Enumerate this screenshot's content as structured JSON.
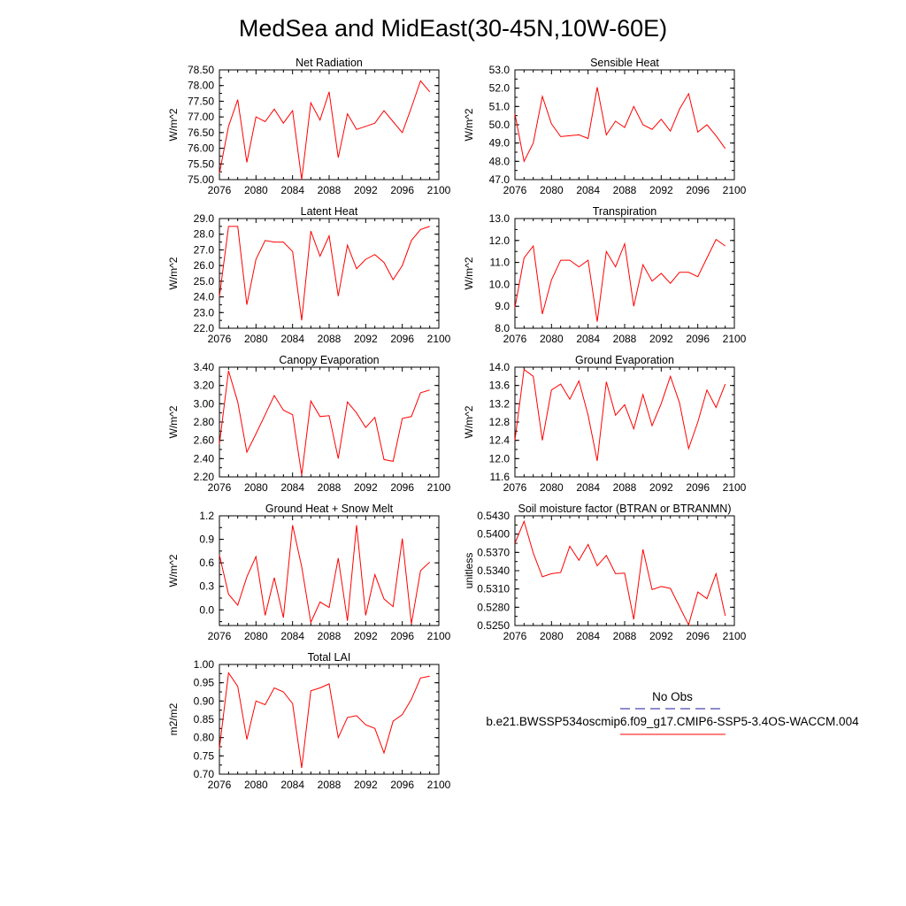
{
  "figure": {
    "title": "MedSea and MidEast(30-45N,10W-60E)"
  },
  "legend": {
    "entries": [
      {
        "label": "No Obs",
        "color": "#1a1a9c",
        "style": "dashed"
      },
      {
        "label": "b.e21.BWSSP534oscmip6.f09_g17.CMIP6-SSP5-3.4OS-WACCM.004",
        "color": "#ff0000",
        "style": "solid"
      }
    ]
  },
  "chart_data": [
    {
      "type": "line",
      "title": "Net Radiation",
      "ylabel": "W/m^2",
      "line_color": "#ff0000",
      "xlim": [
        2076,
        2100
      ],
      "ylim": [
        75.0,
        78.5
      ],
      "xticks": [
        "2076",
        "2080",
        "2084",
        "2088",
        "2092",
        "2096",
        "2100"
      ],
      "yticks": [
        "75.00",
        "75.50",
        "76.00",
        "76.50",
        "77.00",
        "77.50",
        "78.00",
        "78.50"
      ],
      "x": [
        2076,
        2077,
        2078,
        2079,
        2080,
        2081,
        2082,
        2083,
        2084,
        2085,
        2086,
        2087,
        2088,
        2089,
        2090,
        2091,
        2092,
        2093,
        2094,
        2095,
        2096,
        2097,
        2098,
        2099
      ],
      "values": [
        75.2,
        76.7,
        77.55,
        75.55,
        77.0,
        76.85,
        77.25,
        76.8,
        77.2,
        75.0,
        77.45,
        76.9,
        77.8,
        75.7,
        77.1,
        76.6,
        76.7,
        76.8,
        77.2,
        76.85,
        76.5,
        77.3,
        78.15,
        77.8
      ]
    },
    {
      "type": "line",
      "title": "Sensible Heat",
      "ylabel": "W/m^2",
      "line_color": "#ff0000",
      "xlim": [
        2076,
        2100
      ],
      "ylim": [
        47.0,
        53.0
      ],
      "xticks": [
        "2076",
        "2080",
        "2084",
        "2088",
        "2092",
        "2096",
        "2100"
      ],
      "yticks": [
        "47.0",
        "48.0",
        "49.0",
        "50.0",
        "51.0",
        "52.0",
        "53.0"
      ],
      "x": [
        2076,
        2077,
        2078,
        2079,
        2080,
        2081,
        2082,
        2083,
        2084,
        2085,
        2086,
        2087,
        2088,
        2089,
        2090,
        2091,
        2092,
        2093,
        2094,
        2095,
        2096,
        2097,
        2098,
        2099
      ],
      "values": [
        50.6,
        48.0,
        49.0,
        51.55,
        50.05,
        49.35,
        49.4,
        49.45,
        49.25,
        52.05,
        49.45,
        50.2,
        49.85,
        51.0,
        50.0,
        49.75,
        50.3,
        49.65,
        50.85,
        51.7,
        49.6,
        50.0,
        49.4,
        48.7
      ]
    },
    {
      "type": "line",
      "title": "Latent Heat",
      "ylabel": "W/m^2",
      "line_color": "#ff0000",
      "xlim": [
        2076,
        2100
      ],
      "ylim": [
        22.0,
        29.0
      ],
      "xticks": [
        "2076",
        "2080",
        "2084",
        "2088",
        "2092",
        "2096",
        "2100"
      ],
      "yticks": [
        "22.0",
        "23.0",
        "24.0",
        "25.0",
        "26.0",
        "27.0",
        "28.0",
        "29.0"
      ],
      "x": [
        2076,
        2077,
        2078,
        2079,
        2080,
        2081,
        2082,
        2083,
        2084,
        2085,
        2086,
        2087,
        2088,
        2089,
        2090,
        2091,
        2092,
        2093,
        2094,
        2095,
        2096,
        2097,
        2098,
        2099
      ],
      "values": [
        24.0,
        28.5,
        28.5,
        23.5,
        26.4,
        27.6,
        27.5,
        27.5,
        26.9,
        22.5,
        28.2,
        26.6,
        27.9,
        24.05,
        27.3,
        25.8,
        26.4,
        26.7,
        26.2,
        25.1,
        26.0,
        27.6,
        28.3,
        28.5
      ]
    },
    {
      "type": "line",
      "title": "Transpiration",
      "ylabel": "W/m^2",
      "line_color": "#ff0000",
      "xlim": [
        2076,
        2100
      ],
      "ylim": [
        8.0,
        13.0
      ],
      "xticks": [
        "2076",
        "2080",
        "2084",
        "2088",
        "2092",
        "2096",
        "2100"
      ],
      "yticks": [
        "8.0",
        "9.0",
        "10.0",
        "11.0",
        "12.0",
        "13.0"
      ],
      "x": [
        2076,
        2077,
        2078,
        2079,
        2080,
        2081,
        2082,
        2083,
        2084,
        2085,
        2086,
        2087,
        2088,
        2089,
        2090,
        2091,
        2092,
        2093,
        2094,
        2095,
        2096,
        2097,
        2098,
        2099
      ],
      "values": [
        8.95,
        11.2,
        11.75,
        8.65,
        10.2,
        11.1,
        11.1,
        10.8,
        11.1,
        8.3,
        11.5,
        10.8,
        11.85,
        9.0,
        10.9,
        10.15,
        10.5,
        10.05,
        10.55,
        10.55,
        10.35,
        11.2,
        12.05,
        11.75
      ]
    },
    {
      "type": "line",
      "title": "Canopy Evaporation",
      "ylabel": "W/m^2",
      "line_color": "#ff0000",
      "xlim": [
        2076,
        2100
      ],
      "ylim": [
        2.2,
        3.4
      ],
      "xticks": [
        "2076",
        "2080",
        "2084",
        "2088",
        "2092",
        "2096",
        "2100"
      ],
      "yticks": [
        "2.20",
        "2.40",
        "2.60",
        "2.80",
        "3.00",
        "3.20",
        "3.40"
      ],
      "x": [
        2076,
        2077,
        2078,
        2079,
        2080,
        2081,
        2082,
        2083,
        2084,
        2085,
        2086,
        2087,
        2088,
        2089,
        2090,
        2091,
        2092,
        2093,
        2094,
        2095,
        2096,
        2097,
        2098,
        2099
      ],
      "values": [
        2.56,
        3.36,
        3.02,
        2.47,
        2.67,
        2.88,
        3.09,
        2.93,
        2.88,
        2.22,
        3.03,
        2.86,
        2.87,
        2.4,
        3.02,
        2.9,
        2.74,
        2.85,
        2.39,
        2.37,
        2.84,
        2.86,
        3.12,
        3.15
      ]
    },
    {
      "type": "line",
      "title": "Ground Evaporation",
      "ylabel": "W/m^2",
      "line_color": "#ff0000",
      "xlim": [
        2076,
        2100
      ],
      "ylim": [
        11.6,
        14.0
      ],
      "xticks": [
        "2076",
        "2080",
        "2084",
        "2088",
        "2092",
        "2096",
        "2100"
      ],
      "yticks": [
        "11.6",
        "12.0",
        "12.4",
        "12.8",
        "13.2",
        "13.6",
        "14.0"
      ],
      "x": [
        2076,
        2077,
        2078,
        2079,
        2080,
        2081,
        2082,
        2083,
        2084,
        2085,
        2086,
        2087,
        2088,
        2089,
        2090,
        2091,
        2092,
        2093,
        2094,
        2095,
        2096,
        2097,
        2098,
        2099
      ],
      "values": [
        12.4,
        13.95,
        13.8,
        12.4,
        13.5,
        13.63,
        13.3,
        13.7,
        12.95,
        11.95,
        13.68,
        12.95,
        13.18,
        12.65,
        13.4,
        12.72,
        13.2,
        13.8,
        13.22,
        12.22,
        12.8,
        13.5,
        13.12,
        13.63
      ]
    },
    {
      "type": "line",
      "title": "Ground Heat + Snow Melt",
      "ylabel": "W/m^2",
      "line_color": "#ff0000",
      "xlim": [
        2076,
        2100
      ],
      "ylim": [
        -0.2,
        1.2
      ],
      "xticks": [
        "2076",
        "2080",
        "2084",
        "2088",
        "2092",
        "2096",
        "2100"
      ],
      "yticks": [
        "0.0",
        "0.3",
        "0.6",
        "0.9",
        "1.2"
      ],
      "ytick_values": [
        0.0,
        0.3,
        0.6,
        0.9,
        1.2
      ],
      "x": [
        2076,
        2077,
        2078,
        2079,
        2080,
        2081,
        2082,
        2083,
        2084,
        2085,
        2086,
        2087,
        2088,
        2089,
        2090,
        2091,
        2092,
        2093,
        2094,
        2095,
        2096,
        2097,
        2098,
        2099
      ],
      "values": [
        0.7,
        0.2,
        0.06,
        0.42,
        0.68,
        -0.07,
        0.41,
        -0.1,
        1.08,
        0.55,
        -0.16,
        0.1,
        0.03,
        0.66,
        -0.14,
        1.08,
        -0.07,
        0.45,
        0.14,
        0.04,
        0.91,
        -0.18,
        0.5,
        0.61
      ]
    },
    {
      "type": "line",
      "title": "Soil moisture factor (BTRAN or BTRANMN)",
      "ylabel": "unitless",
      "line_color": "#ff0000",
      "xlim": [
        2076,
        2100
      ],
      "ylim": [
        0.525,
        0.543
      ],
      "xticks": [
        "2076",
        "2080",
        "2084",
        "2088",
        "2092",
        "2096",
        "2100"
      ],
      "yticks": [
        "0.5250",
        "0.5280",
        "0.5310",
        "0.5340",
        "0.5370",
        "0.5400",
        "0.5430"
      ],
      "x": [
        2076,
        2077,
        2078,
        2079,
        2080,
        2081,
        2082,
        2083,
        2084,
        2085,
        2086,
        2087,
        2088,
        2089,
        2090,
        2091,
        2092,
        2093,
        2094,
        2095,
        2096,
        2097,
        2098,
        2099
      ],
      "values": [
        0.5385,
        0.5421,
        0.5369,
        0.533,
        0.5335,
        0.5337,
        0.538,
        0.5357,
        0.5383,
        0.5348,
        0.5365,
        0.5335,
        0.5336,
        0.526,
        0.5375,
        0.5309,
        0.5314,
        0.5311,
        0.5281,
        0.5251,
        0.5305,
        0.5294,
        0.5335,
        0.5266
      ]
    },
    {
      "type": "line",
      "title": "Total LAI",
      "ylabel": "m2/m2",
      "line_color": "#ff0000",
      "xlim": [
        2076,
        2100
      ],
      "ylim": [
        0.7,
        1.0
      ],
      "xticks": [
        "2076",
        "2080",
        "2084",
        "2088",
        "2092",
        "2096",
        "2100"
      ],
      "yticks": [
        "0.70",
        "0.75",
        "0.80",
        "0.85",
        "0.90",
        "0.95",
        "1.00"
      ],
      "x": [
        2076,
        2077,
        2078,
        2079,
        2080,
        2081,
        2082,
        2083,
        2084,
        2085,
        2086,
        2087,
        2088,
        2089,
        2090,
        2091,
        2092,
        2093,
        2094,
        2095,
        2096,
        2097,
        2098,
        2099
      ],
      "values": [
        0.77,
        0.977,
        0.94,
        0.795,
        0.9,
        0.89,
        0.936,
        0.925,
        0.893,
        0.717,
        0.928,
        0.936,
        0.947,
        0.8,
        0.855,
        0.86,
        0.835,
        0.825,
        0.758,
        0.845,
        0.863,
        0.905,
        0.963,
        0.968
      ]
    }
  ]
}
